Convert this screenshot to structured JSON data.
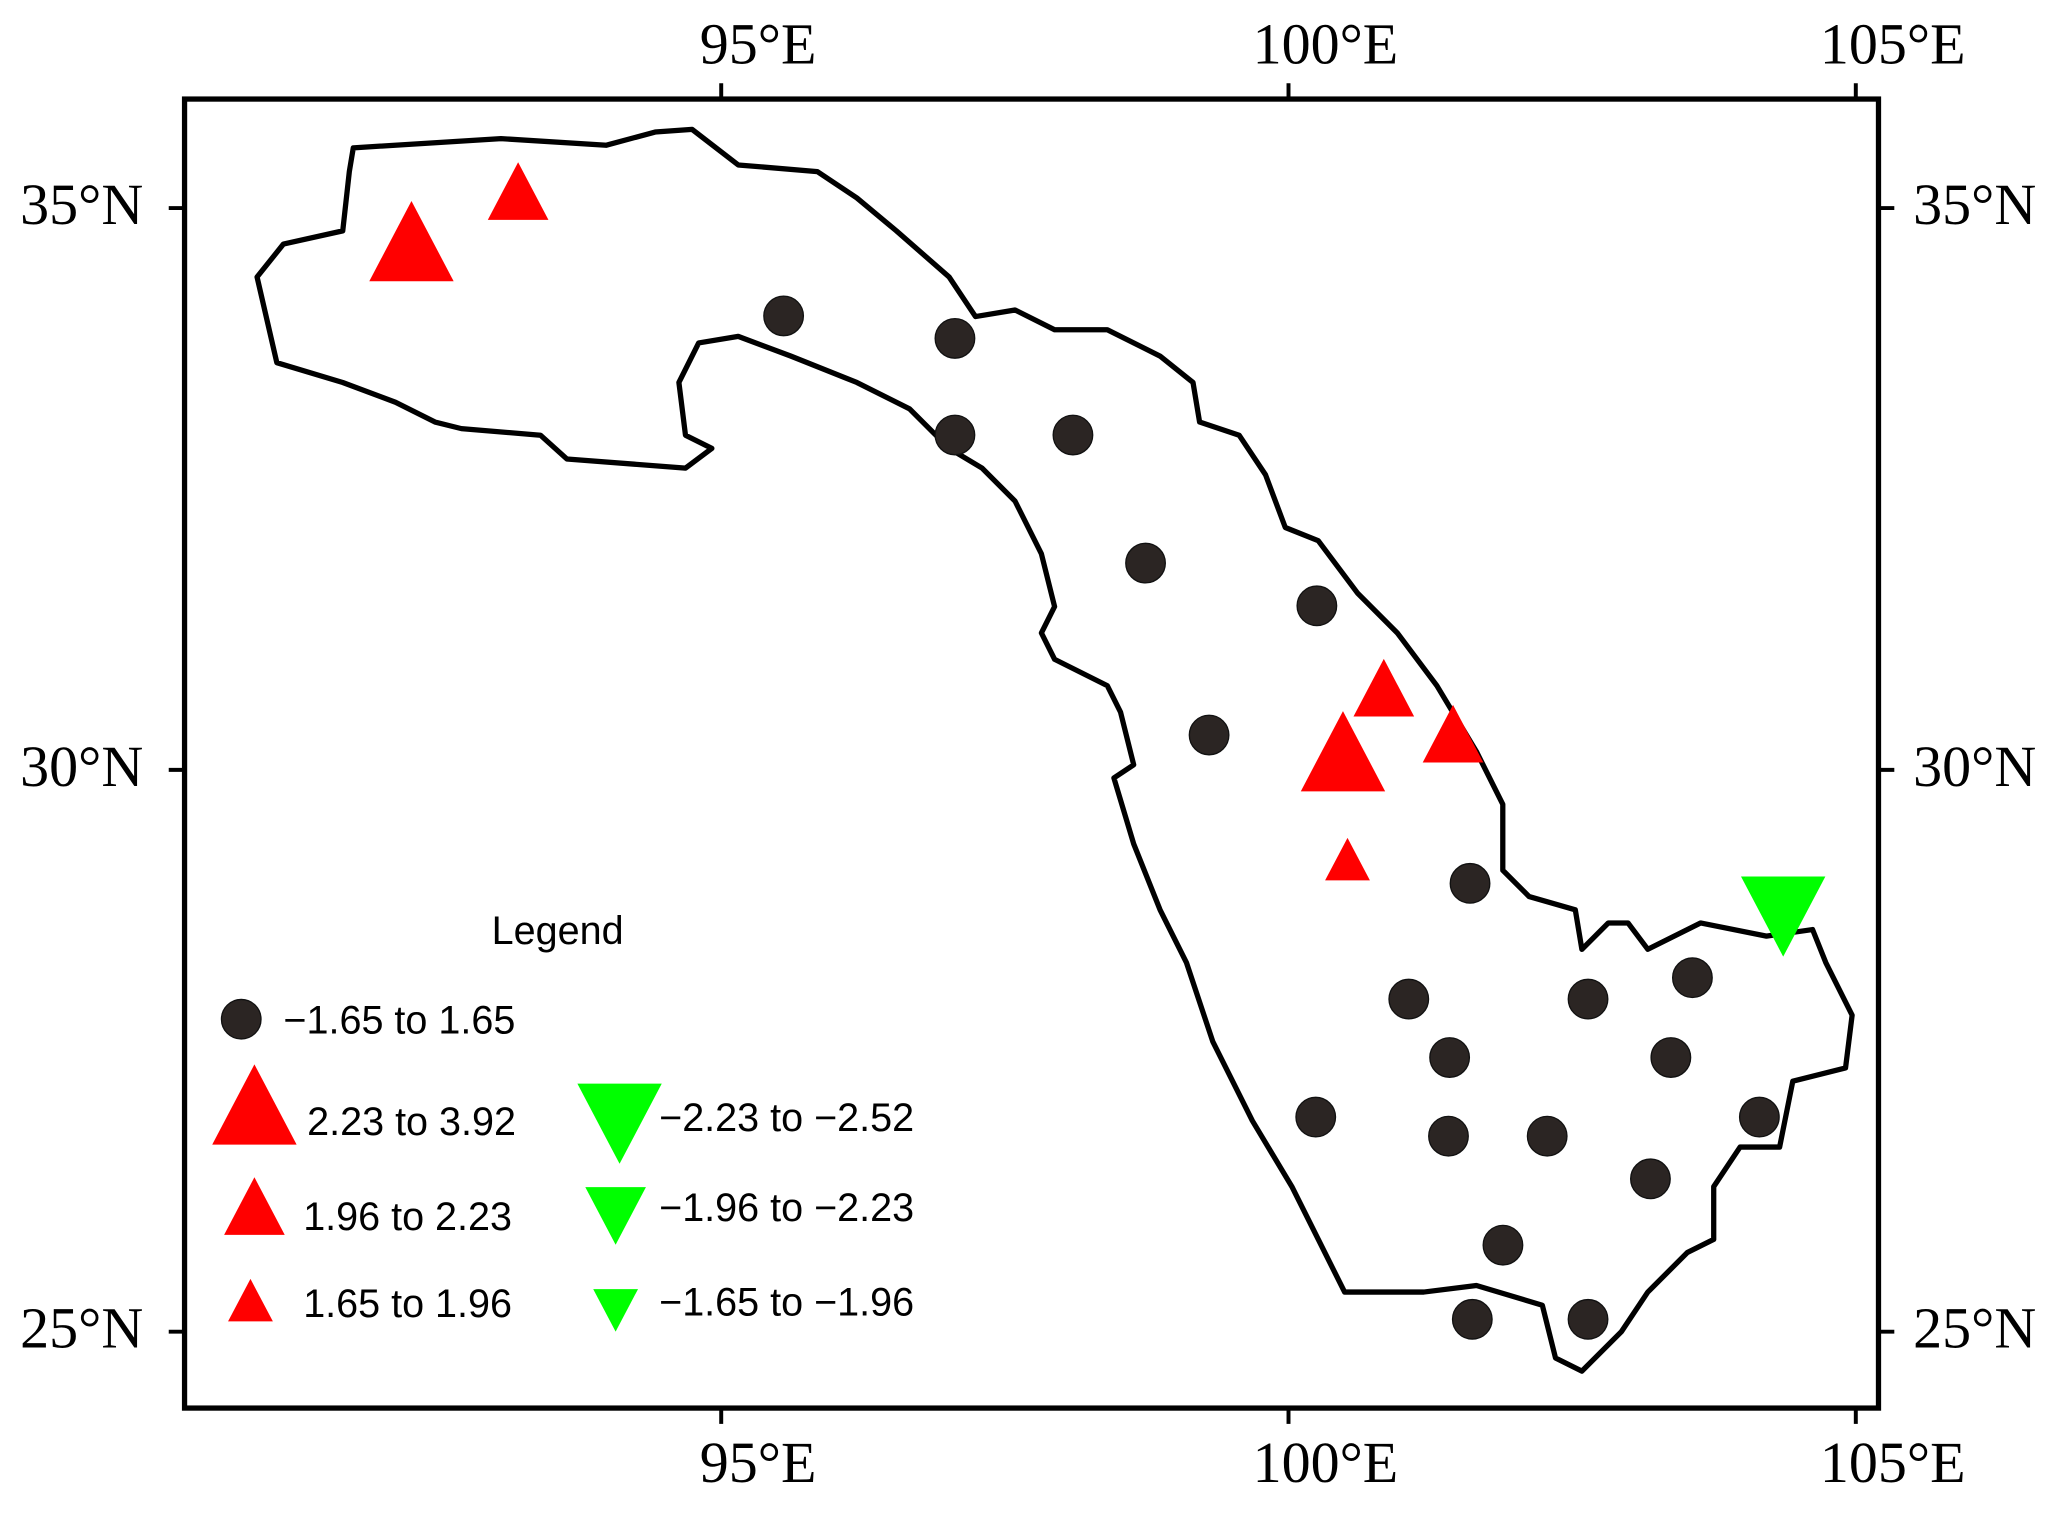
{
  "chart_data": {
    "type": "map",
    "xlim": [
      90.27,
      105.2
    ],
    "ylim": [
      24.32,
      35.97
    ],
    "xticks": [
      {
        "value": 95,
        "label": "95°E"
      },
      {
        "value": 100,
        "label": "100°E"
      },
      {
        "value": 105,
        "label": "105°E"
      }
    ],
    "yticks": [
      {
        "value": 25,
        "label": "25°N"
      },
      {
        "value": 30,
        "label": "30°N"
      },
      {
        "value": 35,
        "label": "35°N"
      }
    ],
    "legend_title": "Legend",
    "series": [
      {
        "name": "−1.65 to 1.65",
        "color": "#2b2523",
        "marker": "circle",
        "size": "medium",
        "x": [
          95.55,
          97.06,
          97.06,
          98.1,
          98.74,
          100.25,
          99.3,
          101.6,
          101.06,
          102.64,
          103.56,
          101.42,
          103.37,
          100.24,
          101.41,
          102.28,
          104.15,
          103.19,
          101.89,
          101.62,
          102.64
        ],
        "y": [
          34.04,
          33.84,
          32.98,
          32.98,
          31.84,
          31.46,
          30.31,
          28.99,
          27.96,
          27.96,
          28.15,
          27.44,
          27.44,
          26.91,
          26.74,
          26.74,
          26.91,
          26.36,
          25.77,
          25.11,
          25.11
        ]
      },
      {
        "name": "2.23 to 3.92",
        "color": "#ff0000",
        "marker": "triangle-up",
        "size": "large",
        "x": [
          92.27,
          100.48
        ],
        "y": [
          34.62,
          30.08
        ]
      },
      {
        "name": "1.96 to 2.23",
        "color": "#ff0000",
        "marker": "triangle-up",
        "size": "medium",
        "x": [
          93.21,
          100.84,
          101.45
        ],
        "y": [
          35.09,
          30.67,
          30.26
        ]
      },
      {
        "name": "1.65 to 1.96",
        "color": "#ff0000",
        "marker": "triangle-up",
        "size": "small",
        "x": [
          100.52
        ],
        "y": [
          29.16
        ]
      },
      {
        "name": "−2.23 to −2.52",
        "color": "#00ff00",
        "marker": "triangle-down",
        "size": "large",
        "x": [
          104.36
        ],
        "y": [
          28.78
        ]
      },
      {
        "name": "−1.96 to −2.23",
        "color": "#00ff00",
        "marker": "triangle-down",
        "size": "medium",
        "x": [],
        "y": []
      },
      {
        "name": "−1.65 to −1.96",
        "color": "#00ff00",
        "marker": "triangle-down",
        "size": "small",
        "x": [],
        "y": []
      }
    ]
  }
}
